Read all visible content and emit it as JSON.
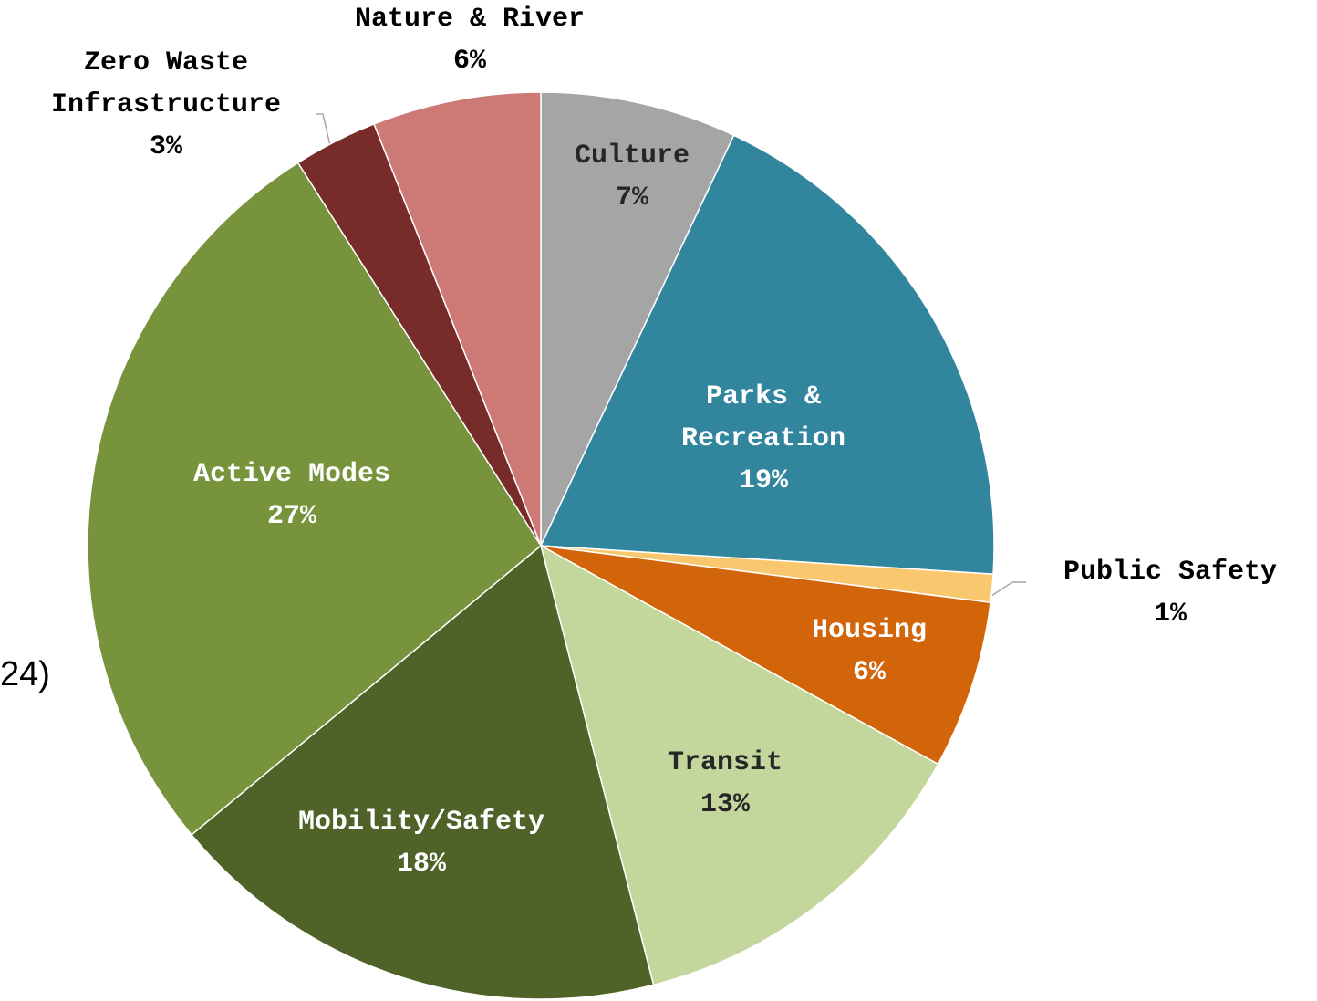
{
  "chart_data": {
    "type": "pie",
    "annotations": [
      "24)"
    ],
    "categories": [
      "Culture",
      "Parks & Recreation",
      "Public Safety",
      "Housing",
      "Transit",
      "Mobility/Safety",
      "Active Modes",
      "Zero Waste Infrastructure",
      "Nature & River"
    ],
    "values": [
      7,
      19,
      1,
      6,
      13,
      18,
      27,
      3,
      6
    ],
    "value_labels": [
      "7%",
      "19%",
      "1%",
      "6%",
      "13%",
      "18%",
      "27%",
      "3%",
      "6%"
    ],
    "colors": [
      "#a5a5a5",
      "#31859c",
      "#f9c86e",
      "#d2640a",
      "#c3d69b",
      "#4f6228",
      "#77933c",
      "#772c2a",
      "#cd7a76"
    ]
  }
}
